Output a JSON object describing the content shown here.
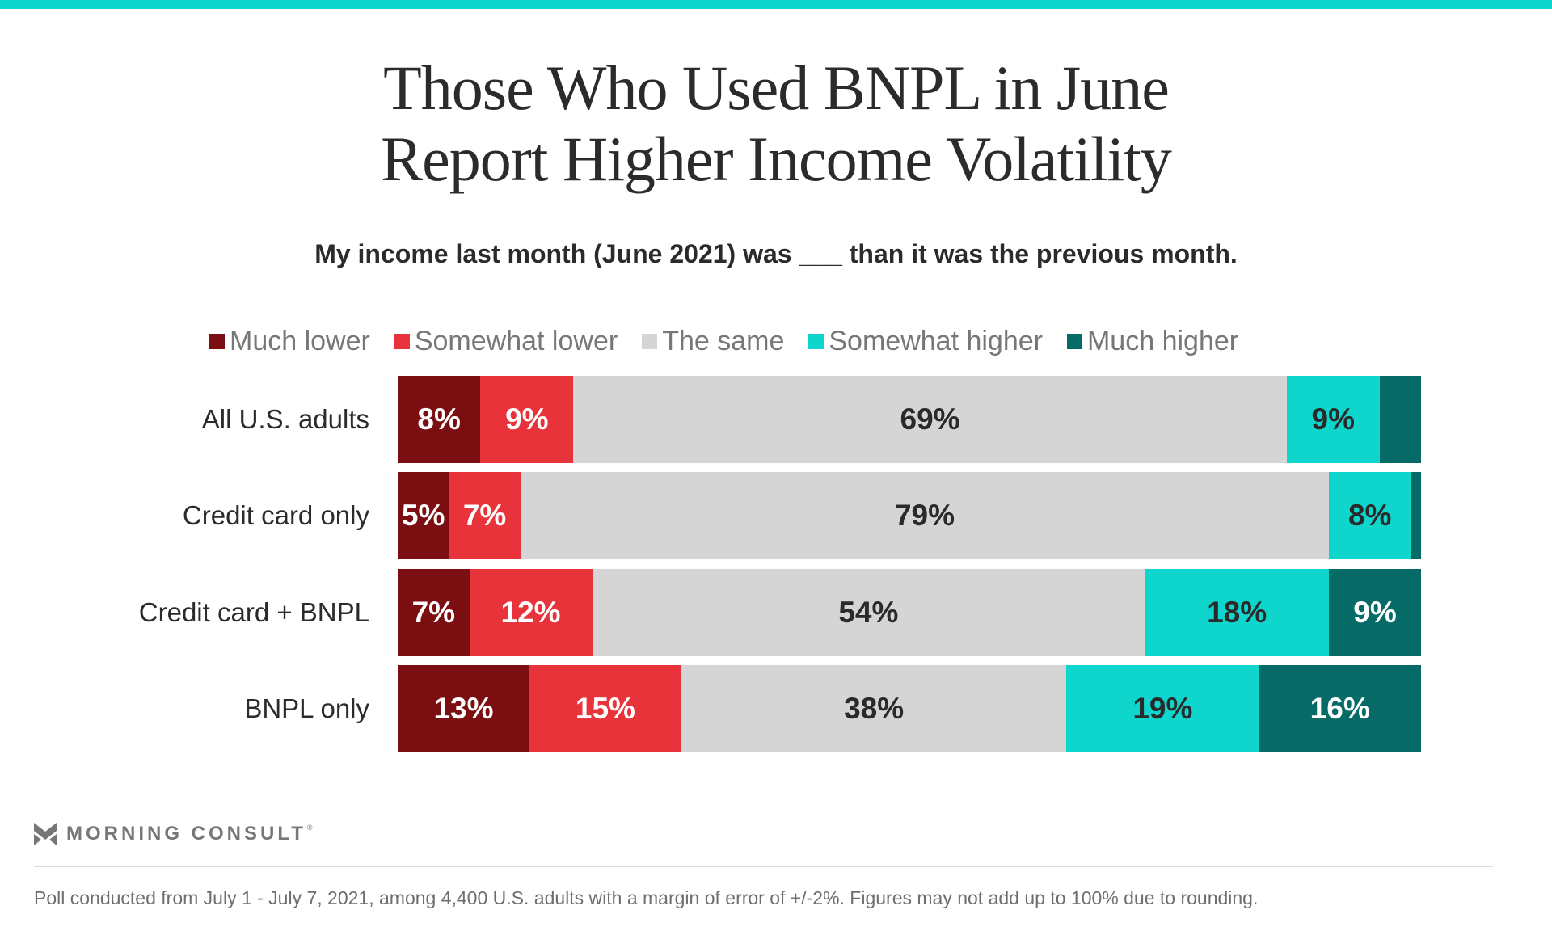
{
  "brand": {
    "accent_color": "#0FD6CC",
    "logo_text": "MORNING CONSULT",
    "logo_registered": "®"
  },
  "chart_data": {
    "type": "bar",
    "orientation": "horizontal",
    "stacked": true,
    "normalized": true,
    "title": "Those Who Used BNPL in June Report Higher Income Volatility",
    "title_lines": [
      "Those Who Used BNPL in June",
      "Report Higher Income Volatility"
    ],
    "subtitle": "My income last month (June 2021) was ___ than it was the previous month.",
    "xlabel": "",
    "ylabel": "",
    "grid": false,
    "legend_position": "top",
    "categories": [
      "All U.S. adults",
      "Credit card only",
      "Credit card + BNPL",
      "BNPL only"
    ],
    "series": [
      {
        "name": "Much lower",
        "color": "#7B0E11",
        "label_color": "#FFFFFF",
        "values": [
          8,
          5,
          7,
          13
        ],
        "labels": [
          "8%",
          "5%",
          "7%",
          "13%"
        ]
      },
      {
        "name": "Somewhat lower",
        "color": "#E8333A",
        "label_color": "#FFFFFF",
        "values": [
          9,
          7,
          12,
          15
        ],
        "labels": [
          "9%",
          "7%",
          "12%",
          "15%"
        ]
      },
      {
        "name": "The same",
        "color": "#D5D5D5",
        "label_color": "#2A2A2A",
        "values": [
          69,
          79,
          54,
          38
        ],
        "labels": [
          "69%",
          "79%",
          "54%",
          "38%"
        ]
      },
      {
        "name": "Somewhat higher",
        "color": "#0FD6CC",
        "label_color": "#2A2A2A",
        "values": [
          9,
          8,
          18,
          19
        ],
        "labels": [
          "9%",
          "8%",
          "18%",
          "19%"
        ]
      },
      {
        "name": "Much higher",
        "color": "#066B67",
        "label_color": "#FFFFFF",
        "values": [
          4,
          1,
          9,
          16
        ],
        "labels": [
          "",
          "",
          "9%",
          "16%"
        ]
      }
    ],
    "footnote": "Poll conducted from July 1 - July 7, 2021, among 4,400 U.S. adults with a margin of error of +/-2%. Figures may not add up to 100% due to rounding."
  }
}
